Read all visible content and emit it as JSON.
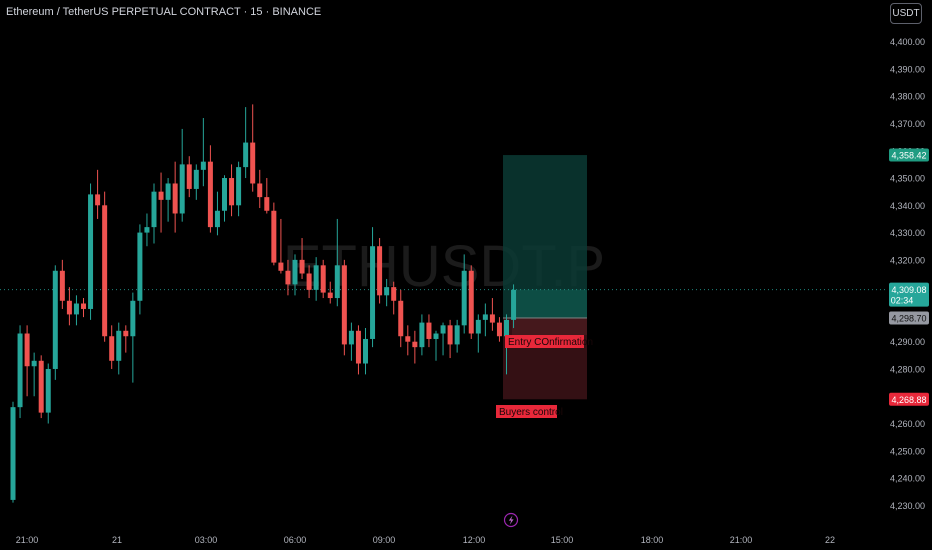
{
  "header": {
    "title": "Ethereum / TetherUS PERPETUAL CONTRACT · 15 · BINANCE",
    "currency_button": "USDT"
  },
  "watermark": "ETHUSDT.P",
  "colors": {
    "up": "#26a69a",
    "down": "#ef5350",
    "background": "#000000",
    "target_zone": "#0b3a34",
    "stop_zone": "#3a1216",
    "axis_text": "#b2b5be"
  },
  "price_labels": {
    "target": "4,358.42",
    "current": "4,309.08",
    "countdown": "02:34",
    "entry": "4,298.70",
    "stop": "4,268.88"
  },
  "annotations": {
    "entry_label": "Entry COnfirmation",
    "stop_label": "Buyers control"
  },
  "chart_data": {
    "type": "candlestick",
    "title": "Ethereum / TetherUS PERPETUAL CONTRACT · 15 · BINANCE",
    "ylim": [
      4225,
      4405
    ],
    "y_ticks": [
      4230,
      4240,
      4250,
      4260,
      4270,
      4280,
      4290,
      4300,
      4310,
      4320,
      4330,
      4340,
      4350,
      4360,
      4370,
      4380,
      4390,
      4400
    ],
    "y_tick_labels": [
      "4,230.00",
      "4,240.00",
      "4,250.00",
      "4,260.00",
      "4,270.00",
      "4,280.00",
      "4,290.00",
      "4,300.00",
      "4,310.00",
      "4,320.00",
      "4,330.00",
      "4,340.00",
      "4,350.00",
      "4,360.00",
      "4,370.00",
      "4,380.00",
      "4,390.00",
      "4,400.00"
    ],
    "x_tick_labels": [
      "21:00",
      "21",
      "03:00",
      "06:00",
      "09:00",
      "12:00",
      "15:00",
      "18:00",
      "21:00",
      "22"
    ],
    "candles": [
      [
        4232,
        4268,
        4231,
        4266
      ],
      [
        4266,
        4296,
        4262,
        4293
      ],
      [
        4293,
        4296,
        4270,
        4281
      ],
      [
        4281,
        4286,
        4270,
        4283
      ],
      [
        4283,
        4285,
        4262,
        4264
      ],
      [
        4264,
        4282,
        4260,
        4280
      ],
      [
        4280,
        4318,
        4276,
        4316
      ],
      [
        4316,
        4320,
        4302,
        4305
      ],
      [
        4305,
        4310,
        4296,
        4300
      ],
      [
        4300,
        4307,
        4296,
        4304
      ],
      [
        4304,
        4306,
        4299,
        4302
      ],
      [
        4302,
        4348,
        4298,
        4344
      ],
      [
        4344,
        4353,
        4335,
        4340
      ],
      [
        4340,
        4345,
        4290,
        4292
      ],
      [
        4292,
        4296,
        4280,
        4283
      ],
      [
        4283,
        4297,
        4278,
        4294
      ],
      [
        4294,
        4296,
        4286,
        4292
      ],
      [
        4292,
        4308,
        4275,
        4305
      ],
      [
        4305,
        4333,
        4300,
        4330
      ],
      [
        4330,
        4337,
        4325,
        4332
      ],
      [
        4332,
        4348,
        4326,
        4345
      ],
      [
        4345,
        4352,
        4330,
        4342
      ],
      [
        4342,
        4350,
        4334,
        4348
      ],
      [
        4348,
        4356,
        4330,
        4337
      ],
      [
        4337,
        4368,
        4334,
        4355
      ],
      [
        4355,
        4358,
        4343,
        4346
      ],
      [
        4346,
        4355,
        4342,
        4353
      ],
      [
        4353,
        4372,
        4347,
        4356
      ],
      [
        4356,
        4362,
        4330,
        4332
      ],
      [
        4332,
        4345,
        4329,
        4338
      ],
      [
        4338,
        4351,
        4334,
        4350
      ],
      [
        4350,
        4355,
        4336,
        4340
      ],
      [
        4340,
        4356,
        4336,
        4354
      ],
      [
        4354,
        4376,
        4350,
        4363
      ],
      [
        4363,
        4377,
        4345,
        4348
      ],
      [
        4348,
        4353,
        4339,
        4343
      ],
      [
        4343,
        4350,
        4337,
        4338
      ],
      [
        4338,
        4341,
        4318,
        4319
      ],
      [
        4319,
        4335,
        4315,
        4316
      ],
      [
        4316,
        4320,
        4307,
        4311
      ],
      [
        4311,
        4322,
        4307,
        4320
      ],
      [
        4320,
        4328,
        4313,
        4315
      ],
      [
        4315,
        4318,
        4306,
        4309
      ],
      [
        4309,
        4321,
        4305,
        4318
      ],
      [
        4318,
        4320,
        4306,
        4308
      ],
      [
        4308,
        4312,
        4304,
        4306
      ],
      [
        4306,
        4335,
        4303,
        4318
      ],
      [
        4318,
        4320,
        4285,
        4289
      ],
      [
        4289,
        4297,
        4283,
        4294
      ],
      [
        4294,
        4296,
        4278,
        4282
      ],
      [
        4282,
        4295,
        4278,
        4291
      ],
      [
        4291,
        4332,
        4288,
        4325
      ],
      [
        4325,
        4328,
        4304,
        4307
      ],
      [
        4307,
        4313,
        4303,
        4310
      ],
      [
        4310,
        4312,
        4300,
        4305
      ],
      [
        4305,
        4309,
        4288,
        4292
      ],
      [
        4292,
        4296,
        4285,
        4290
      ],
      [
        4290,
        4294,
        4282,
        4288
      ],
      [
        4288,
        4300,
        4285,
        4297
      ],
      [
        4297,
        4300,
        4288,
        4291
      ],
      [
        4291,
        4294,
        4283,
        4293
      ],
      [
        4293,
        4297,
        4285,
        4296
      ],
      [
        4296,
        4298,
        4284,
        4289
      ],
      [
        4289,
        4298,
        4286,
        4296
      ],
      [
        4296,
        4322,
        4293,
        4316
      ],
      [
        4316,
        4318,
        4291,
        4293
      ],
      [
        4293,
        4300,
        4286,
        4298
      ],
      [
        4298,
        4304,
        4292,
        4300
      ],
      [
        4300,
        4306,
        4294,
        4297
      ],
      [
        4297,
        4299,
        4290,
        4292
      ],
      [
        4292,
        4300,
        4278,
        4298
      ],
      [
        4298,
        4311,
        4295,
        4309
      ]
    ],
    "position": {
      "entry": 4298.7,
      "target": 4358.42,
      "stop": 4268.88,
      "current": 4309.08
    }
  }
}
